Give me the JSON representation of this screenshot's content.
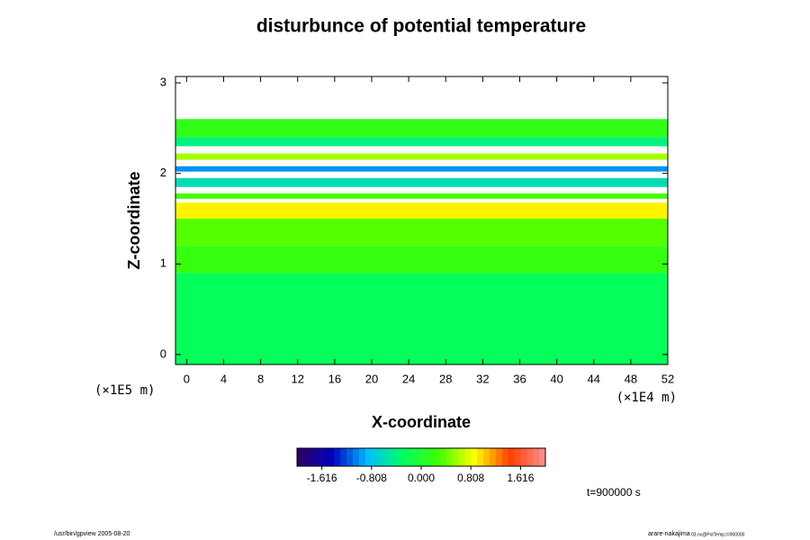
{
  "chart_data": {
    "type": "heatmap",
    "title": "disturbunce of potential temperature",
    "x_label": "X-coordinate",
    "y_label": "Z-coordinate",
    "x_unit": "(×1E4 m)",
    "y_unit": "(×1E5 m)",
    "time_label": "t=900000 s",
    "footer_left": "/usr/bin/gpview 2005-08-20",
    "footer_right": "arare-nakajima",
    "footer_right_small": "03.nc@PotTemp,t=900000",
    "xlim": [
      -1.2,
      52
    ],
    "xticks": [
      0,
      4,
      8,
      12,
      16,
      20,
      24,
      28,
      32,
      36,
      40,
      44,
      48,
      52
    ],
    "ylim": [
      -0.11,
      3.07
    ],
    "yticks": [
      0,
      1,
      2,
      3
    ],
    "ybins": [
      -0.11,
      0.9,
      1.2,
      1.5,
      1.68,
      1.72,
      1.78,
      1.85,
      1.95,
      2.02,
      2.08,
      2.15,
      2.22,
      2.3,
      2.4,
      2.6,
      3.07
    ],
    "values": [
      -0.25,
      0.2,
      0.35,
      0.9,
      2.5,
      0.3,
      2.5,
      -0.6,
      2.5,
      -1.0,
      2.5,
      0.6,
      2.5,
      -0.4,
      0.15
    ],
    "clim": [
      -2.02,
      2.02
    ],
    "cticks": [
      -1.616,
      -0.808,
      {
        "value": 0,
        "label": "0.000"
      },
      0.808,
      1.616
    ],
    "colormap": [
      "#300060",
      "#0000c0",
      "#00c0ff",
      "#00ff60",
      "#40ff00",
      "#ffff00",
      "#ff4000",
      "#ff9090"
    ]
  }
}
